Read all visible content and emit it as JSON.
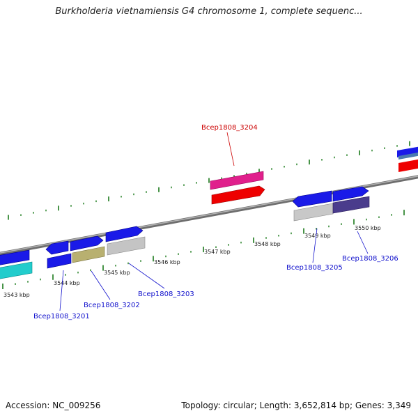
{
  "title": "Burkholderia vietnamiensis G4 chromosome 1, complete sequenc...",
  "accession": "Accession: NC_009256",
  "summary": "Topology: circular; Length: 3,652,814 bp; Genes: 3,349",
  "colors": {
    "backbone": "#8a8a8a",
    "tick": "#1a7a1a",
    "highlight_label": "#cc0000",
    "label": "#1010cc"
  },
  "scale_labels": [
    "3543 kbp",
    "3544 kbp",
    "3545 kbp",
    "3546 kbp",
    "3547 kbp",
    "3548 kbp",
    "3549 kbp",
    "3550 kbp"
  ],
  "gene_labels": [
    "Bcep1808_3201",
    "Bcep1808_3202",
    "Bcep1808_3203",
    "Bcep1808_3204",
    "Bcep1808_3205",
    "Bcep1808_3206"
  ]
}
